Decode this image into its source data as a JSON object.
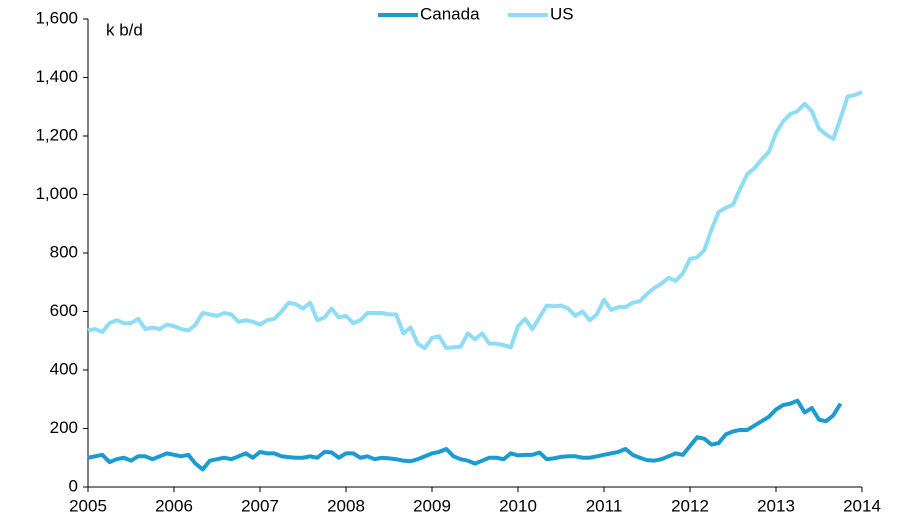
{
  "chart_data": {
    "type": "line",
    "annotation": "k b/d",
    "categories": [
      "2005",
      null,
      null,
      null,
      null,
      null,
      null,
      null,
      null,
      null,
      null,
      null,
      "2006",
      null,
      null,
      null,
      null,
      null,
      null,
      null,
      null,
      null,
      null,
      null,
      "2007",
      null,
      null,
      null,
      null,
      null,
      null,
      null,
      null,
      null,
      null,
      null,
      "2008",
      null,
      null,
      null,
      null,
      null,
      null,
      null,
      null,
      null,
      null,
      null,
      "2009",
      null,
      null,
      null,
      null,
      null,
      null,
      null,
      null,
      null,
      null,
      null,
      "2010",
      null,
      null,
      null,
      null,
      null,
      null,
      null,
      null,
      null,
      null,
      null,
      "2011",
      null,
      null,
      null,
      null,
      null,
      null,
      null,
      null,
      null,
      null,
      null,
      "2012",
      null,
      null,
      null,
      null,
      null,
      null,
      null,
      null,
      null,
      null,
      null,
      "2013",
      null,
      null,
      null,
      null,
      null,
      null,
      null,
      null,
      null,
      null,
      null,
      "2014"
    ],
    "series": [
      {
        "name": "Canada",
        "color": "#1b9bd1",
        "values": [
          100,
          105,
          110,
          85,
          95,
          100,
          90,
          105,
          105,
          95,
          105,
          115,
          110,
          105,
          110,
          80,
          60,
          90,
          95,
          100,
          95,
          105,
          115,
          100,
          120,
          115,
          115,
          105,
          102,
          100,
          100,
          105,
          100,
          120,
          118,
          100,
          115,
          115,
          100,
          105,
          95,
          100,
          98,
          95,
          90,
          88,
          95,
          105,
          115,
          120,
          130,
          105,
          95,
          90,
          80,
          90,
          100,
          100,
          95,
          115,
          108,
          110,
          110,
          118,
          95,
          98,
          103,
          105,
          105,
          100,
          100,
          105,
          110,
          115,
          120,
          130,
          110,
          100,
          92,
          90,
          95,
          105,
          115,
          110,
          140,
          170,
          165,
          145,
          150,
          180,
          190,
          195,
          195,
          210,
          225,
          240,
          265,
          280,
          285,
          295,
          255,
          270,
          230,
          225,
          245,
          285,
          null,
          null,
          null
        ]
      },
      {
        "name": "US",
        "color": "#8fdcf7",
        "values": [
          535,
          540,
          530,
          560,
          570,
          560,
          560,
          575,
          540,
          545,
          540,
          555,
          550,
          540,
          535,
          555,
          595,
          590,
          585,
          595,
          590,
          565,
          570,
          565,
          555,
          570,
          575,
          600,
          630,
          625,
          610,
          630,
          570,
          580,
          610,
          580,
          585,
          560,
          570,
          595,
          595,
          595,
          590,
          590,
          525,
          545,
          490,
          475,
          510,
          515,
          475,
          478,
          480,
          525,
          505,
          525,
          490,
          490,
          485,
          478,
          550,
          575,
          540,
          580,
          620,
          618,
          620,
          610,
          585,
          600,
          570,
          590,
          640,
          605,
          615,
          615,
          630,
          635,
          660,
          680,
          695,
          715,
          705,
          730,
          780,
          785,
          810,
          880,
          940,
          955,
          965,
          1020,
          1070,
          1090,
          1120,
          1145,
          1210,
          1250,
          1275,
          1285,
          1310,
          1285,
          1225,
          1205,
          1190,
          1260,
          1335,
          1340,
          1350
        ]
      }
    ],
    "ylim": [
      0,
      1600
    ],
    "yticks": [
      0,
      200,
      400,
      600,
      800,
      {
        "value": 1000,
        "label": "1,000"
      },
      {
        "value": 1200,
        "label": "1,200"
      },
      {
        "value": 1400,
        "label": "1,400"
      },
      {
        "value": 1600,
        "label": "1,600"
      }
    ],
    "legend": "top"
  }
}
